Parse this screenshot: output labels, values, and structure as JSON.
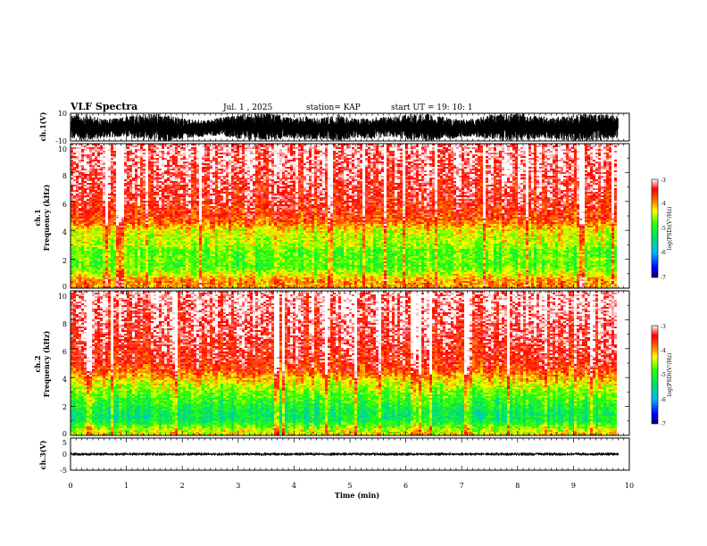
{
  "header": {
    "title": "VLF Spectra",
    "date": "Jul.  1  , 2025",
    "station": "station= KAP",
    "start": "start  UT  =   19: 10: 1"
  },
  "chart_data": [
    {
      "type": "line",
      "id": "ch1",
      "ylabel": "ch.1(V)",
      "ylim": [
        -10,
        10
      ],
      "yticks": [
        "10",
        "-10"
      ],
      "xlim": [
        0,
        10
      ],
      "xlabel": "",
      "x": [
        0.0,
        0.3,
        0.6,
        0.9,
        1.2,
        1.5,
        1.8,
        2.1,
        2.4,
        2.7,
        3.0,
        3.3,
        3.6,
        3.9,
        4.2,
        4.5,
        4.8,
        5.1,
        5.4,
        5.7,
        6.0,
        6.3,
        6.6,
        6.9,
        7.2,
        7.5,
        7.8,
        8.1,
        8.4,
        8.7,
        9.0,
        9.3,
        9.6,
        9.8
      ],
      "series": [
        {
          "values_min": [
            -9,
            -10,
            -8,
            -7,
            -9,
            -10,
            -10,
            -8,
            -7,
            -6,
            -9,
            -10,
            -10,
            -8,
            -9,
            -9,
            -10,
            -8,
            -9,
            -7,
            -9,
            -10,
            -10,
            -8,
            -7,
            -9,
            -10,
            -10,
            -8,
            -9,
            -10,
            -10,
            -9,
            -8
          ],
          "values_max": [
            10,
            9,
            6,
            7,
            9,
            10,
            8,
            6,
            5,
            7,
            9,
            10,
            10,
            7,
            8,
            7,
            9,
            6,
            7,
            8,
            9,
            10,
            8,
            6,
            6,
            9,
            10,
            10,
            8,
            7,
            9,
            10,
            9,
            8
          ]
        }
      ]
    },
    {
      "type": "heatmap",
      "id": "ch2-spectrogram-upper",
      "ylabel": "ch.1\nFrequency  (kHz)",
      "ylim": [
        0,
        10
      ],
      "yticks": [
        "0",
        "2",
        "4",
        "6",
        "8",
        "10"
      ],
      "xlim": [
        0,
        10
      ],
      "time_extent_min": 9.8,
      "band_profile_freq_khz": [
        0,
        0.5,
        1,
        1.5,
        2,
        2.5,
        3,
        3.5,
        4,
        4.5,
        5,
        6,
        7,
        8,
        9,
        10
      ],
      "band_profile_logpsd": [
        -4.0,
        -3.9,
        -4.4,
        -4.8,
        -4.7,
        -4.8,
        -4.5,
        -4.4,
        -4.3,
        -3.8,
        -3.6,
        -3.4,
        -3.3,
        -3.2,
        -3.15,
        -3.1
      ],
      "colorbar": {
        "label": "log(PSD)(V²/Hz)",
        "range": [
          -7,
          -3
        ],
        "ticks": [
          "-3",
          "-4",
          "-5",
          "-6",
          "-7"
        ]
      }
    },
    {
      "type": "heatmap",
      "id": "ch3-spectrogram-lower",
      "ylabel": "ch.2\nFrequency  (kHz)",
      "ylim": [
        0,
        10
      ],
      "yticks": [
        "0",
        "2",
        "4",
        "6",
        "8",
        "10"
      ],
      "xlim": [
        0,
        10
      ],
      "time_extent_min": 9.8,
      "band_profile_freq_khz": [
        0,
        0.5,
        1,
        1.5,
        2,
        2.5,
        3,
        3.5,
        4,
        4.5,
        5,
        6,
        7,
        8,
        9,
        10
      ],
      "band_profile_logpsd": [
        -4.2,
        -4.6,
        -5.2,
        -5.3,
        -5.1,
        -4.9,
        -4.7,
        -4.4,
        -4.1,
        -3.7,
        -3.5,
        -3.4,
        -3.3,
        -3.2,
        -3.15,
        -3.1
      ],
      "colorbar": {
        "label": "log(PSD)(V²/Hz)",
        "range": [
          -7,
          -3
        ],
        "ticks": [
          "-3",
          "-4",
          "-5",
          "-6",
          "-7"
        ]
      }
    },
    {
      "type": "line",
      "id": "ch3",
      "ylabel": "ch.3(V)",
      "ylim": [
        -5,
        5
      ],
      "yticks": [
        "5",
        "0",
        "-5"
      ],
      "xlim": [
        0,
        10
      ],
      "xlabel": "Time  (min)",
      "xticks": [
        "0",
        "1",
        "2",
        "3",
        "4",
        "5",
        "6",
        "7",
        "8",
        "9",
        "10"
      ],
      "x": [
        0.0,
        9.8
      ],
      "series": [
        {
          "values_min": [
            -0.5,
            -0.5
          ],
          "values_max": [
            0.5,
            0.5
          ]
        }
      ]
    }
  ]
}
